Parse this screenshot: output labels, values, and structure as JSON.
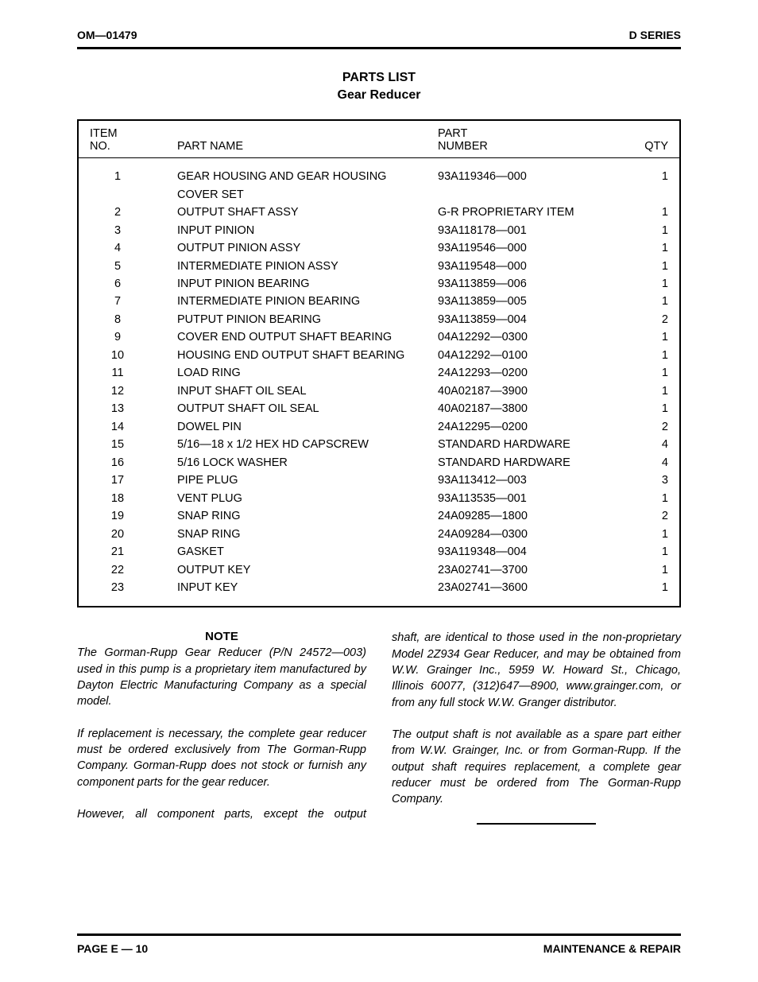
{
  "header": {
    "left": "OM—01479",
    "right": "D SERIES"
  },
  "title": {
    "line1": "PARTS LIST",
    "line2": "Gear Reducer"
  },
  "table": {
    "head": {
      "item_l1": "ITEM",
      "item_l2": "NO.",
      "name": "PART NAME",
      "part_l1": "PART",
      "part_l2": "NUMBER",
      "qty": "QTY"
    },
    "rows": [
      {
        "item": "1",
        "name": "GEAR HOUSING AND GEAR HOUSING",
        "name2": "COVER SET",
        "part": "93A119346—000",
        "qty": "1"
      },
      {
        "item": "2",
        "name": "OUTPUT SHAFT ASSY",
        "part": "G-R PROPRIETARY ITEM",
        "qty": "1"
      },
      {
        "item": "3",
        "name": "INPUT PINION",
        "part": "93A118178—001",
        "qty": "1"
      },
      {
        "item": "4",
        "name": "OUTPUT PINION ASSY",
        "part": "93A119546—000",
        "qty": "1"
      },
      {
        "item": "5",
        "name": "INTERMEDIATE PINION ASSY",
        "part": "93A119548—000",
        "qty": "1"
      },
      {
        "item": "6",
        "name": "INPUT PINION BEARING",
        "part": "93A113859—006",
        "qty": "1"
      },
      {
        "item": "7",
        "name": "INTERMEDIATE PINION BEARING",
        "part": "93A113859—005",
        "qty": "1"
      },
      {
        "item": "8",
        "name": "PUTPUT PINION BEARING",
        "part": "93A113859—004",
        "qty": "2"
      },
      {
        "item": "9",
        "name": "COVER END OUTPUT SHAFT BEARING",
        "part": "04A12292—0300",
        "qty": "1"
      },
      {
        "item": "10",
        "name": "HOUSING END OUTPUT SHAFT BEARING",
        "part": "04A12292—0100",
        "qty": "1"
      },
      {
        "item": "11",
        "name": "LOAD RING",
        "part": "24A12293—0200",
        "qty": "1"
      },
      {
        "item": "12",
        "name": "INPUT SHAFT OIL SEAL",
        "part": "40A02187—3900",
        "qty": "1"
      },
      {
        "item": "13",
        "name": "OUTPUT SHAFT OIL SEAL",
        "part": "40A02187—3800",
        "qty": "1"
      },
      {
        "item": "14",
        "name": "DOWEL PIN",
        "part": "24A12295—0200",
        "qty": "2"
      },
      {
        "item": "15",
        "name": "5/16—18 x 1/2 HEX HD CAPSCREW",
        "part": "STANDARD HARDWARE",
        "qty": "4"
      },
      {
        "item": "16",
        "name": "5/16 LOCK WASHER",
        "part": "STANDARD HARDWARE",
        "qty": "4"
      },
      {
        "item": "17",
        "name": "PIPE PLUG",
        "part": "93A113412—003",
        "qty": "3"
      },
      {
        "item": "18",
        "name": "VENT PLUG",
        "part": "93A113535—001",
        "qty": "1"
      },
      {
        "item": "19",
        "name": "SNAP RING",
        "part": "24A09285—1800",
        "qty": "2"
      },
      {
        "item": "20",
        "name": "SNAP RING",
        "part": "24A09284—0300",
        "qty": "1"
      },
      {
        "item": "21",
        "name": "GASKET",
        "part": "93A119348—004",
        "qty": "1"
      },
      {
        "item": "22",
        "name": "OUTPUT KEY",
        "part": "23A02741—3700",
        "qty": "1"
      },
      {
        "item": "23",
        "name": "INPUT KEY",
        "part": "23A02741—3600",
        "qty": "1"
      }
    ]
  },
  "note": {
    "heading": "NOTE",
    "left_p1": "The Gorman-Rupp Gear Reducer (P/N 24572—003) used in this pump is a proprietary item manufactured by Dayton Electric Manufacturing Company as a special model.",
    "left_p2": "If replacement is necessary, the complete gear reducer must be ordered exclusively from The Gorman-Rupp Company. Gorman-Rupp does not stock or furnish any component parts for the gear reducer.",
    "left_p3": "However, all component parts, except the output",
    "right_p1": "shaft, are identical to those used in the non-proprietary Model 2Z934 Gear Reducer, and may be obtained from W.W. Grainger Inc., 5959 W. Howard St., Chicago, Illinois 60077, (312)647—8900, www.grainger.com, or from any full stock W.W. Granger distributor.",
    "right_p2": "The output shaft is not available as a spare part either from W.W. Grainger, Inc. or from Gorman-Rupp. If the output shaft requires replacement, a complete gear reducer must be ordered from The Gorman-Rupp Company."
  },
  "footer": {
    "left": "PAGE E — 10",
    "right": "MAINTENANCE & REPAIR"
  }
}
